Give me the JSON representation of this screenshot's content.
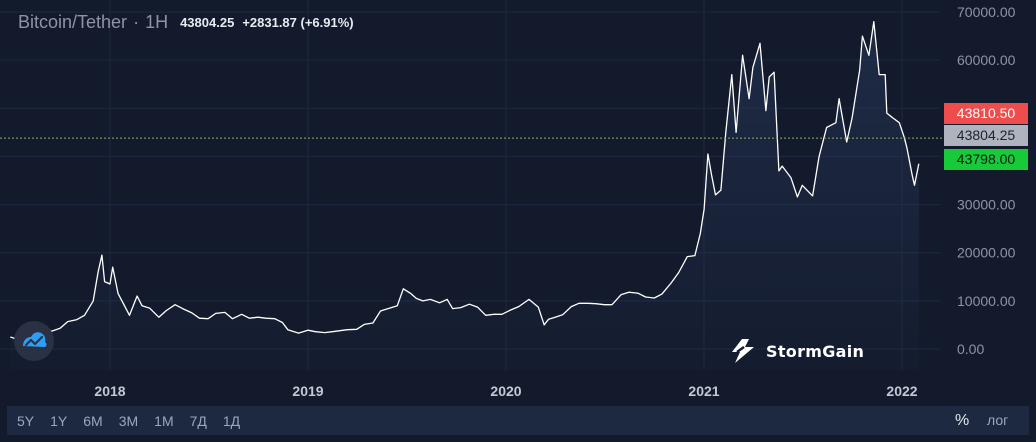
{
  "header": {
    "symbol": "Bitcoin/Tether",
    "separator": "·",
    "interval": "1H",
    "last_price": "43804.25",
    "change": "+2831.87 (+6.91%)"
  },
  "price_tags": {
    "ask": "43810.50",
    "last": "43804.25",
    "bid": "43798.00"
  },
  "brand": {
    "name": "StormGain"
  },
  "range_buttons": [
    "5Y",
    "1Y",
    "6M",
    "3M",
    "1M",
    "7Д",
    "1Д"
  ],
  "scale_options": {
    "percent": "%",
    "log": "лог"
  },
  "colors": {
    "background": "#131a2c",
    "line": "#ffffff",
    "ask": "#ef4d4d",
    "last": "#aeb3bd",
    "bid": "#18c93a",
    "price_line": "#7fb06a"
  },
  "icons": {
    "logo": "trading-chart-logo-icon",
    "brand": "stormgain-bolt-icon"
  },
  "chart_data": {
    "type": "area",
    "series": [
      {
        "x": [
          "2017-07-01",
          "2017-07-15",
          "2017-08-01",
          "2017-08-15",
          "2017-09-01",
          "2017-09-15",
          "2017-10-01",
          "2017-10-15",
          "2017-11-01",
          "2017-11-15",
          "2017-12-01",
          "2017-12-10",
          "2017-12-17",
          "2017-12-22",
          "2018-01-01",
          "2018-01-06",
          "2018-01-16",
          "2018-02-06",
          "2018-02-20",
          "2018-03-01",
          "2018-03-15",
          "2018-04-01",
          "2018-04-15",
          "2018-05-01",
          "2018-05-15",
          "2018-06-01",
          "2018-06-15",
          "2018-07-01",
          "2018-07-15",
          "2018-08-01",
          "2018-08-15",
          "2018-09-01",
          "2018-09-15",
          "2018-10-01",
          "2018-10-15",
          "2018-11-01",
          "2018-11-15",
          "2018-11-25",
          "2018-12-15",
          "2019-01-01",
          "2019-01-15",
          "2019-02-01",
          "2019-02-15",
          "2019-03-01",
          "2019-03-15",
          "2019-04-01",
          "2019-04-15",
          "2019-05-01",
          "2019-05-15",
          "2019-06-01",
          "2019-06-15",
          "2019-06-26",
          "2019-07-10",
          "2019-07-20",
          "2019-08-01",
          "2019-08-15",
          "2019-09-01",
          "2019-09-15",
          "2019-09-25",
          "2019-10-10",
          "2019-10-26",
          "2019-11-10",
          "2019-11-25",
          "2019-12-10",
          "2019-12-25",
          "2020-01-10",
          "2020-01-25",
          "2020-02-13",
          "2020-03-01",
          "2020-03-12",
          "2020-03-20",
          "2020-04-01",
          "2020-04-15",
          "2020-05-01",
          "2020-05-15",
          "2020-06-01",
          "2020-06-15",
          "2020-07-01",
          "2020-07-15",
          "2020-08-01",
          "2020-08-15",
          "2020-09-01",
          "2020-09-15",
          "2020-10-01",
          "2020-10-15",
          "2020-11-01",
          "2020-11-15",
          "2020-12-01",
          "2020-12-15",
          "2020-12-25",
          "2021-01-01",
          "2021-01-08",
          "2021-01-15",
          "2021-01-22",
          "2021-02-01",
          "2021-02-10",
          "2021-02-21",
          "2021-03-01",
          "2021-03-13",
          "2021-03-25",
          "2021-04-01",
          "2021-04-14",
          "2021-04-25",
          "2021-05-01",
          "2021-05-10",
          "2021-05-19",
          "2021-05-25",
          "2021-06-10",
          "2021-06-22",
          "2021-07-01",
          "2021-07-20",
          "2021-08-01",
          "2021-08-15",
          "2021-09-01",
          "2021-09-07",
          "2021-09-21",
          "2021-10-01",
          "2021-10-15",
          "2021-10-20",
          "2021-11-01",
          "2021-11-10",
          "2021-11-20",
          "2021-12-01",
          "2021-12-04",
          "2021-12-15",
          "2021-12-27",
          "2022-01-05",
          "2022-01-10",
          "2022-01-20",
          "2022-01-24",
          "2022-02-01"
        ],
        "y": [
          2500,
          2000,
          3900,
          4200,
          4700,
          3700,
          4300,
          5700,
          6100,
          7000,
          10000,
          16000,
          19500,
          14000,
          13500,
          17000,
          11500,
          7000,
          11000,
          9000,
          8500,
          6600,
          8000,
          9200,
          8400,
          7500,
          6400,
          6300,
          7400,
          7600,
          6300,
          7200,
          6400,
          6600,
          6400,
          6300,
          5500,
          4000,
          3300,
          3900,
          3600,
          3400,
          3600,
          3800,
          4000,
          4100,
          5100,
          5400,
          7900,
          8500,
          9000,
          12500,
          11500,
          10500,
          10000,
          10300,
          9600,
          10300,
          8400,
          8600,
          9300,
          8700,
          7000,
          7200,
          7200,
          8100,
          8800,
          10300,
          8700,
          5000,
          6200,
          6600,
          7100,
          8800,
          9500,
          9500,
          9400,
          9200,
          9200,
          11300,
          11800,
          11600,
          10800,
          10600,
          11400,
          13700,
          15900,
          19200,
          19400,
          24000,
          29000,
          40500,
          36000,
          32000,
          33000,
          45000,
          57000,
          45000,
          61000,
          52000,
          58500,
          63500,
          49500,
          56500,
          57500,
          37000,
          38000,
          35600,
          31600,
          34000,
          31800,
          40000,
          46000,
          47000,
          52000,
          43000,
          48000,
          58000,
          65000,
          61000,
          68000,
          57000,
          57000,
          49000,
          48000,
          47000,
          44000,
          41800,
          36000,
          34000,
          38500
        ]
      }
    ],
    "ylim": [
      -2000,
      72000
    ],
    "yticks": [
      "0.00",
      "10000.00",
      "20000.00",
      "30000.00",
      "40000.00",
      "50000.00",
      "60000.00",
      "70000.00"
    ],
    "xticks": [
      "2018",
      "2019",
      "2020",
      "2021",
      "2022"
    ],
    "current_price": 43804.25,
    "grid": true
  }
}
